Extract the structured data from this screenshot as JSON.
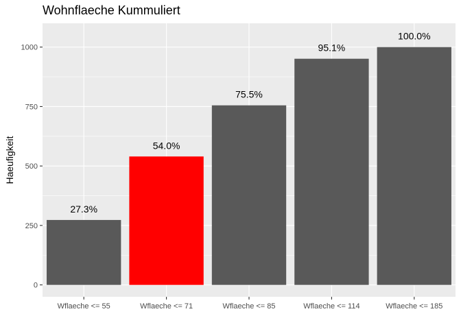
{
  "chart_data": {
    "type": "bar",
    "title": "Wohnflaeche Kummuliert",
    "xlabel": "",
    "ylabel": "Haeufigkeit",
    "categories": [
      "Wflaeche <= 55",
      "Wflaeche <= 71",
      "Wflaeche <= 85",
      "Wflaeche <= 114",
      "Wflaeche <= 185"
    ],
    "values": [
      273,
      540,
      755,
      951,
      1000
    ],
    "data_labels": [
      "27.3%",
      "54.0%",
      "75.5%",
      "95.1%",
      "100.0%"
    ],
    "bar_colors": [
      "#595959",
      "#ff0000",
      "#595959",
      "#595959",
      "#595959"
    ],
    "ylim": [
      -50,
      1100
    ],
    "yticks": [
      0,
      250,
      500,
      750,
      1000
    ],
    "ytick_labels": [
      "0",
      "250",
      "500",
      "750",
      "1000"
    ],
    "grid": true,
    "panel_background": "#ebebeb",
    "grid_color": "#ffffff",
    "legend": "none"
  }
}
